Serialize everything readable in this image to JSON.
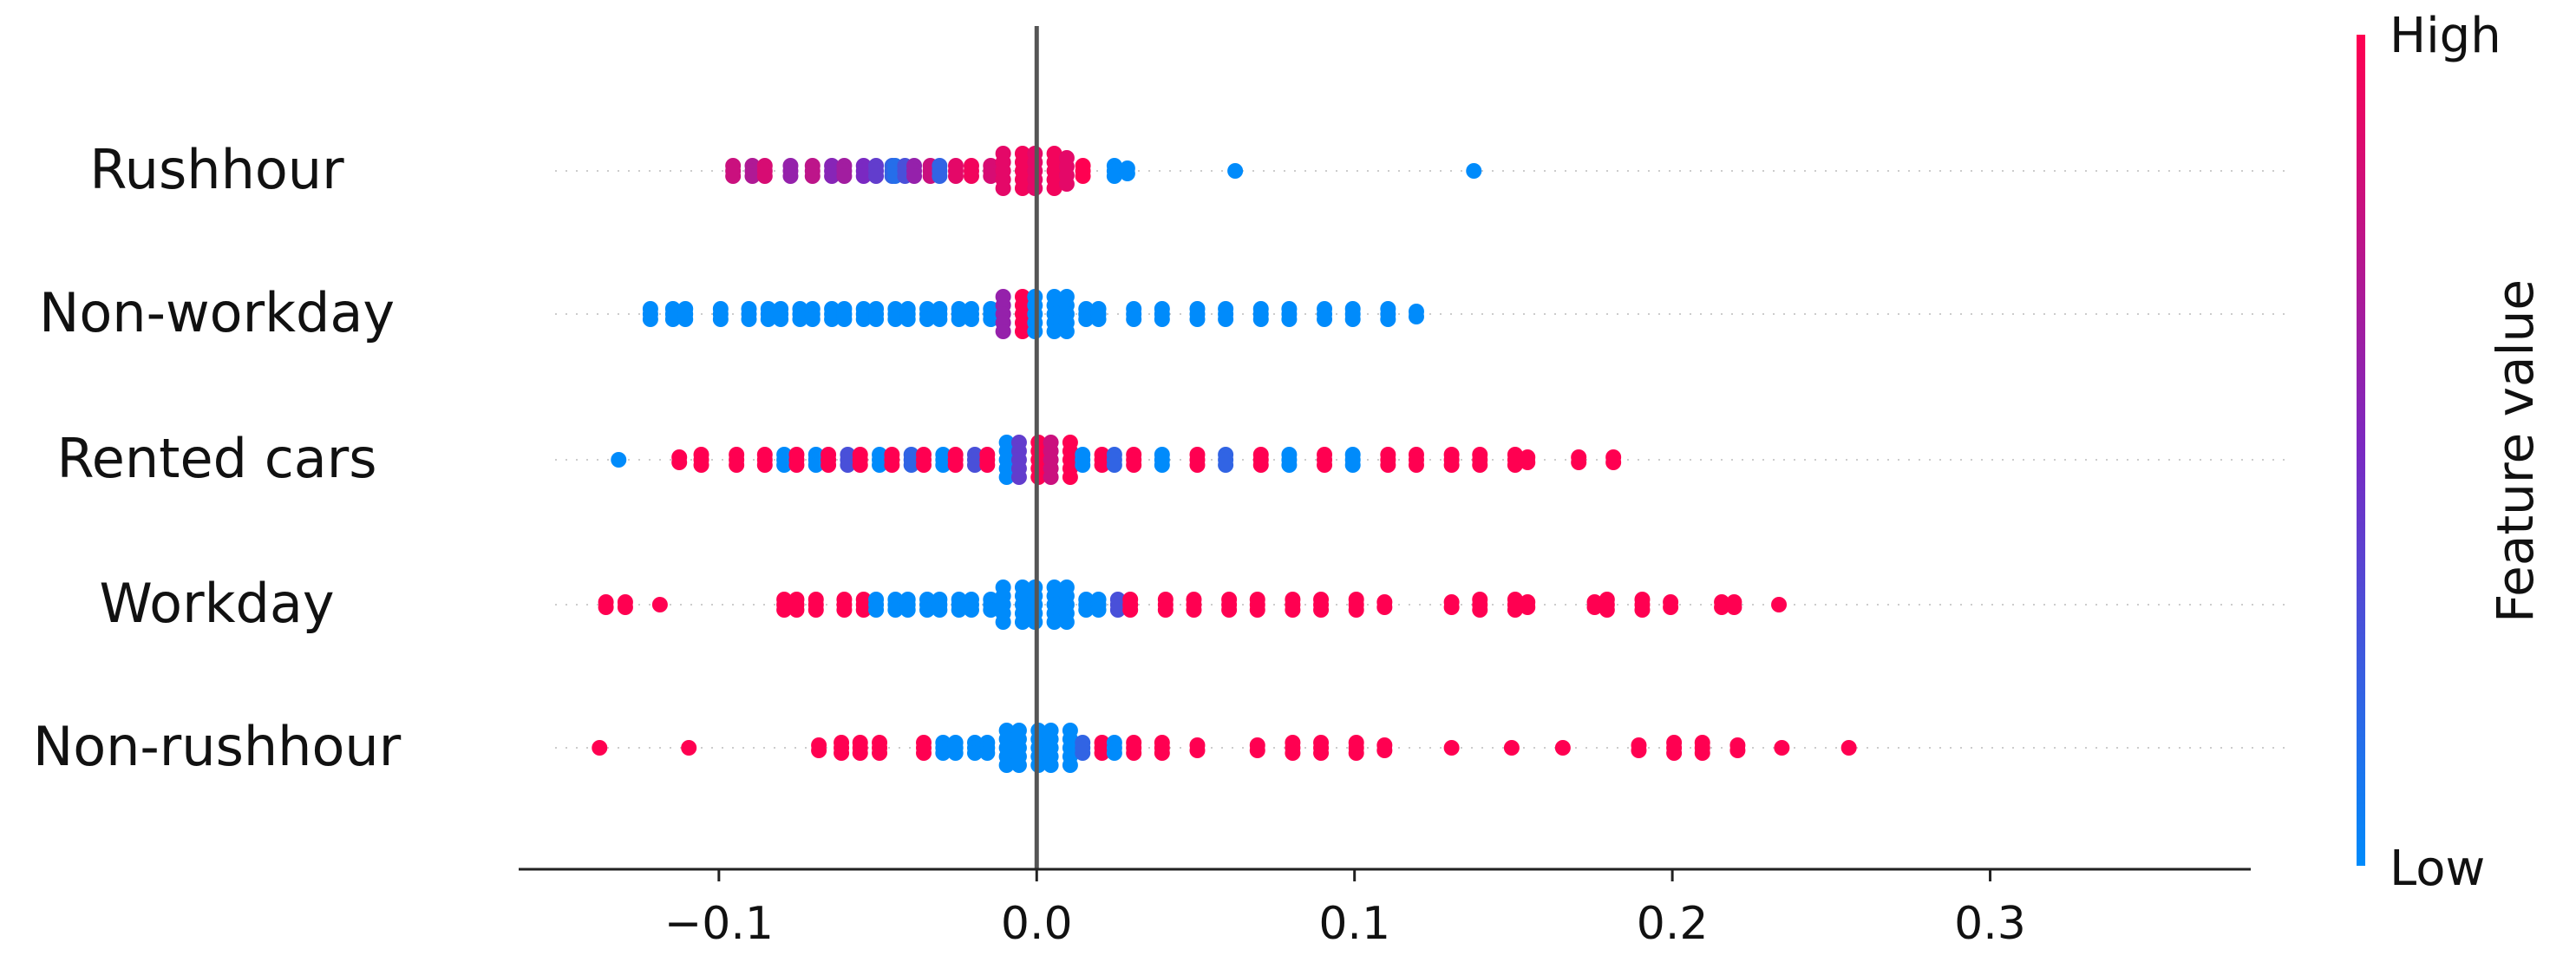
{
  "chart_data": {
    "type": "scatter",
    "subtype": "shap-beeswarm-summary",
    "title": "",
    "xlabel": "",
    "ylabel": "",
    "xlim": [
      -0.163,
      0.382
    ],
    "x_ticks": [
      -0.1,
      0.0,
      0.1,
      0.2,
      0.3
    ],
    "x_tick_labels": [
      "−0.1",
      "0.0",
      "0.1",
      "0.2",
      "0.3"
    ],
    "zero_line": 0.0,
    "grid": false,
    "colorbar": {
      "label": "Feature value",
      "high_label": "High",
      "low_label": "Low",
      "high_color": "#ff0051",
      "low_color": "#008bfb"
    },
    "features": [
      {
        "name": "Rushhour",
        "points": [
          {
            "x": -0.095,
            "c": 0.8
          },
          {
            "x": -0.09,
            "c": 0.7
          },
          {
            "x": -0.085,
            "c": 0.85
          },
          {
            "x": -0.078,
            "c": 0.6
          },
          {
            "x": -0.07,
            "c": 0.75
          },
          {
            "x": -0.065,
            "c": 0.55
          },
          {
            "x": -0.06,
            "c": 0.65
          },
          {
            "x": -0.055,
            "c": 0.5
          },
          {
            "x": -0.05,
            "c": 0.4
          },
          {
            "x": -0.046,
            "c": 0.2
          },
          {
            "x": -0.044,
            "c": 0.15
          },
          {
            "x": -0.042,
            "c": 0.3
          },
          {
            "x": -0.038,
            "c": 0.6
          },
          {
            "x": -0.034,
            "c": 0.8
          },
          {
            "x": -0.03,
            "c": 0.2
          },
          {
            "x": -0.026,
            "c": 0.9
          },
          {
            "x": -0.02,
            "c": 0.95
          },
          {
            "x": -0.015,
            "c": 0.85
          },
          {
            "x": -0.01,
            "c": 0.9
          },
          {
            "x": -0.005,
            "c": 0.95
          },
          {
            "x": 0.0,
            "c": 0.9
          },
          {
            "x": 0.005,
            "c": 0.95
          },
          {
            "x": 0.01,
            "c": 0.9
          },
          {
            "x": 0.014,
            "c": 1.0
          },
          {
            "x": 0.025,
            "c": 0.0
          },
          {
            "x": 0.028,
            "c": 0.0
          },
          {
            "x": 0.063,
            "c": 0.0
          },
          {
            "x": 0.137,
            "c": 0.0
          }
        ]
      },
      {
        "name": "Non-workday",
        "points": [
          {
            "x": -0.121,
            "c": 0.0
          },
          {
            "x": -0.115,
            "c": 0.0
          },
          {
            "x": -0.11,
            "c": 0.0
          },
          {
            "x": -0.1,
            "c": 0.0
          },
          {
            "x": -0.09,
            "c": 0.0
          },
          {
            "x": -0.085,
            "c": 0.0
          },
          {
            "x": -0.08,
            "c": 0.0
          },
          {
            "x": -0.075,
            "c": 0.0
          },
          {
            "x": -0.07,
            "c": 0.0
          },
          {
            "x": -0.065,
            "c": 0.0
          },
          {
            "x": -0.06,
            "c": 0.0
          },
          {
            "x": -0.055,
            "c": 0.0
          },
          {
            "x": -0.05,
            "c": 0.0
          },
          {
            "x": -0.045,
            "c": 0.0
          },
          {
            "x": -0.04,
            "c": 0.0
          },
          {
            "x": -0.035,
            "c": 0.0
          },
          {
            "x": -0.03,
            "c": 0.0
          },
          {
            "x": -0.025,
            "c": 0.0
          },
          {
            "x": -0.02,
            "c": 0.0
          },
          {
            "x": -0.015,
            "c": 0.0
          },
          {
            "x": -0.01,
            "c": 0.6
          },
          {
            "x": -0.005,
            "c": 1.0
          },
          {
            "x": 0.0,
            "c": 0.0
          },
          {
            "x": 0.005,
            "c": 0.0
          },
          {
            "x": 0.01,
            "c": 0.0
          },
          {
            "x": 0.015,
            "c": 0.0
          },
          {
            "x": 0.02,
            "c": 0.0
          },
          {
            "x": 0.03,
            "c": 0.0
          },
          {
            "x": 0.04,
            "c": 0.0
          },
          {
            "x": 0.05,
            "c": 0.0
          },
          {
            "x": 0.06,
            "c": 0.0
          },
          {
            "x": 0.07,
            "c": 0.0
          },
          {
            "x": 0.08,
            "c": 0.0
          },
          {
            "x": 0.09,
            "c": 0.0
          },
          {
            "x": 0.1,
            "c": 0.0
          },
          {
            "x": 0.11,
            "c": 0.0
          },
          {
            "x": 0.12,
            "c": 0.0
          }
        ]
      },
      {
        "name": "Rented cars",
        "points": [
          {
            "x": -0.131,
            "c": 0.0
          },
          {
            "x": -0.113,
            "c": 1.0
          },
          {
            "x": -0.105,
            "c": 1.0
          },
          {
            "x": -0.095,
            "c": 1.0
          },
          {
            "x": -0.085,
            "c": 1.0
          },
          {
            "x": -0.08,
            "c": 0.0
          },
          {
            "x": -0.075,
            "c": 1.0
          },
          {
            "x": -0.07,
            "c": 0.0
          },
          {
            "x": -0.065,
            "c": 1.0
          },
          {
            "x": -0.06,
            "c": 0.3
          },
          {
            "x": -0.055,
            "c": 1.0
          },
          {
            "x": -0.05,
            "c": 0.0
          },
          {
            "x": -0.045,
            "c": 1.0
          },
          {
            "x": -0.04,
            "c": 0.2
          },
          {
            "x": -0.035,
            "c": 1.0
          },
          {
            "x": -0.03,
            "c": 0.0
          },
          {
            "x": -0.025,
            "c": 1.0
          },
          {
            "x": -0.02,
            "c": 0.3
          },
          {
            "x": -0.015,
            "c": 1.0
          },
          {
            "x": -0.01,
            "c": 0.0
          },
          {
            "x": -0.005,
            "c": 0.4
          },
          {
            "x": 0.0,
            "c": 1.0
          },
          {
            "x": 0.005,
            "c": 0.8
          },
          {
            "x": 0.01,
            "c": 1.0
          },
          {
            "x": 0.015,
            "c": 0.0
          },
          {
            "x": 0.02,
            "c": 1.0
          },
          {
            "x": 0.025,
            "c": 0.2
          },
          {
            "x": 0.03,
            "c": 1.0
          },
          {
            "x": 0.04,
            "c": 0.0
          },
          {
            "x": 0.05,
            "c": 1.0
          },
          {
            "x": 0.06,
            "c": 0.2
          },
          {
            "x": 0.07,
            "c": 1.0
          },
          {
            "x": 0.08,
            "c": 0.0
          },
          {
            "x": 0.09,
            "c": 1.0
          },
          {
            "x": 0.1,
            "c": 0.0
          },
          {
            "x": 0.11,
            "c": 1.0
          },
          {
            "x": 0.12,
            "c": 1.0
          },
          {
            "x": 0.13,
            "c": 1.0
          },
          {
            "x": 0.14,
            "c": 1.0
          },
          {
            "x": 0.15,
            "c": 1.0
          },
          {
            "x": 0.155,
            "c": 1.0
          },
          {
            "x": 0.17,
            "c": 1.0
          },
          {
            "x": 0.182,
            "c": 1.0
          }
        ]
      },
      {
        "name": "Workday",
        "points": [
          {
            "x": -0.135,
            "c": 1.0
          },
          {
            "x": -0.13,
            "c": 1.0
          },
          {
            "x": -0.118,
            "c": 1.0
          },
          {
            "x": -0.08,
            "c": 1.0
          },
          {
            "x": -0.075,
            "c": 1.0
          },
          {
            "x": -0.07,
            "c": 1.0
          },
          {
            "x": -0.06,
            "c": 1.0
          },
          {
            "x": -0.055,
            "c": 1.0
          },
          {
            "x": -0.05,
            "c": 0.0
          },
          {
            "x": -0.045,
            "c": 0.0
          },
          {
            "x": -0.04,
            "c": 0.0
          },
          {
            "x": -0.035,
            "c": 0.0
          },
          {
            "x": -0.03,
            "c": 0.0
          },
          {
            "x": -0.025,
            "c": 0.0
          },
          {
            "x": -0.02,
            "c": 0.0
          },
          {
            "x": -0.015,
            "c": 0.0
          },
          {
            "x": -0.01,
            "c": 0.0
          },
          {
            "x": -0.005,
            "c": 0.0
          },
          {
            "x": 0.0,
            "c": 0.0
          },
          {
            "x": 0.005,
            "c": 0.0
          },
          {
            "x": 0.01,
            "c": 0.0
          },
          {
            "x": 0.015,
            "c": 0.0
          },
          {
            "x": 0.02,
            "c": 0.0
          },
          {
            "x": 0.025,
            "c": 0.3
          },
          {
            "x": 0.03,
            "c": 1.0
          },
          {
            "x": 0.04,
            "c": 1.0
          },
          {
            "x": 0.05,
            "c": 1.0
          },
          {
            "x": 0.06,
            "c": 1.0
          },
          {
            "x": 0.07,
            "c": 1.0
          },
          {
            "x": 0.08,
            "c": 1.0
          },
          {
            "x": 0.09,
            "c": 1.0
          },
          {
            "x": 0.1,
            "c": 1.0
          },
          {
            "x": 0.11,
            "c": 1.0
          },
          {
            "x": 0.13,
            "c": 1.0
          },
          {
            "x": 0.14,
            "c": 1.0
          },
          {
            "x": 0.15,
            "c": 1.0
          },
          {
            "x": 0.155,
            "c": 1.0
          },
          {
            "x": 0.175,
            "c": 1.0
          },
          {
            "x": 0.18,
            "c": 1.0
          },
          {
            "x": 0.19,
            "c": 1.0
          },
          {
            "x": 0.2,
            "c": 1.0
          },
          {
            "x": 0.215,
            "c": 1.0
          },
          {
            "x": 0.22,
            "c": 1.0
          },
          {
            "x": 0.233,
            "c": 1.0
          }
        ]
      },
      {
        "name": "Non-rushhour",
        "points": [
          {
            "x": -0.137,
            "c": 1.0
          },
          {
            "x": -0.11,
            "c": 1.0
          },
          {
            "x": -0.068,
            "c": 1.0
          },
          {
            "x": -0.062,
            "c": 1.0
          },
          {
            "x": -0.055,
            "c": 1.0
          },
          {
            "x": -0.05,
            "c": 1.0
          },
          {
            "x": -0.035,
            "c": 1.0
          },
          {
            "x": -0.03,
            "c": 0.0
          },
          {
            "x": -0.025,
            "c": 0.0
          },
          {
            "x": -0.02,
            "c": 0.0
          },
          {
            "x": -0.015,
            "c": 0.0
          },
          {
            "x": -0.01,
            "c": 0.0
          },
          {
            "x": -0.005,
            "c": 0.0
          },
          {
            "x": 0.0,
            "c": 0.0
          },
          {
            "x": 0.005,
            "c": 0.0
          },
          {
            "x": 0.01,
            "c": 0.0
          },
          {
            "x": 0.015,
            "c": 0.2
          },
          {
            "x": 0.02,
            "c": 1.0
          },
          {
            "x": 0.025,
            "c": 0.0
          },
          {
            "x": 0.03,
            "c": 1.0
          },
          {
            "x": 0.04,
            "c": 1.0
          },
          {
            "x": 0.05,
            "c": 1.0
          },
          {
            "x": 0.07,
            "c": 1.0
          },
          {
            "x": 0.08,
            "c": 1.0
          },
          {
            "x": 0.09,
            "c": 1.0
          },
          {
            "x": 0.1,
            "c": 1.0
          },
          {
            "x": 0.11,
            "c": 1.0
          },
          {
            "x": 0.13,
            "c": 1.0
          },
          {
            "x": 0.15,
            "c": 1.0
          },
          {
            "x": 0.165,
            "c": 1.0
          },
          {
            "x": 0.19,
            "c": 1.0
          },
          {
            "x": 0.2,
            "c": 1.0
          },
          {
            "x": 0.21,
            "c": 1.0
          },
          {
            "x": 0.22,
            "c": 1.0
          },
          {
            "x": 0.235,
            "c": 1.0
          },
          {
            "x": 0.255,
            "c": 1.0
          }
        ]
      }
    ]
  }
}
